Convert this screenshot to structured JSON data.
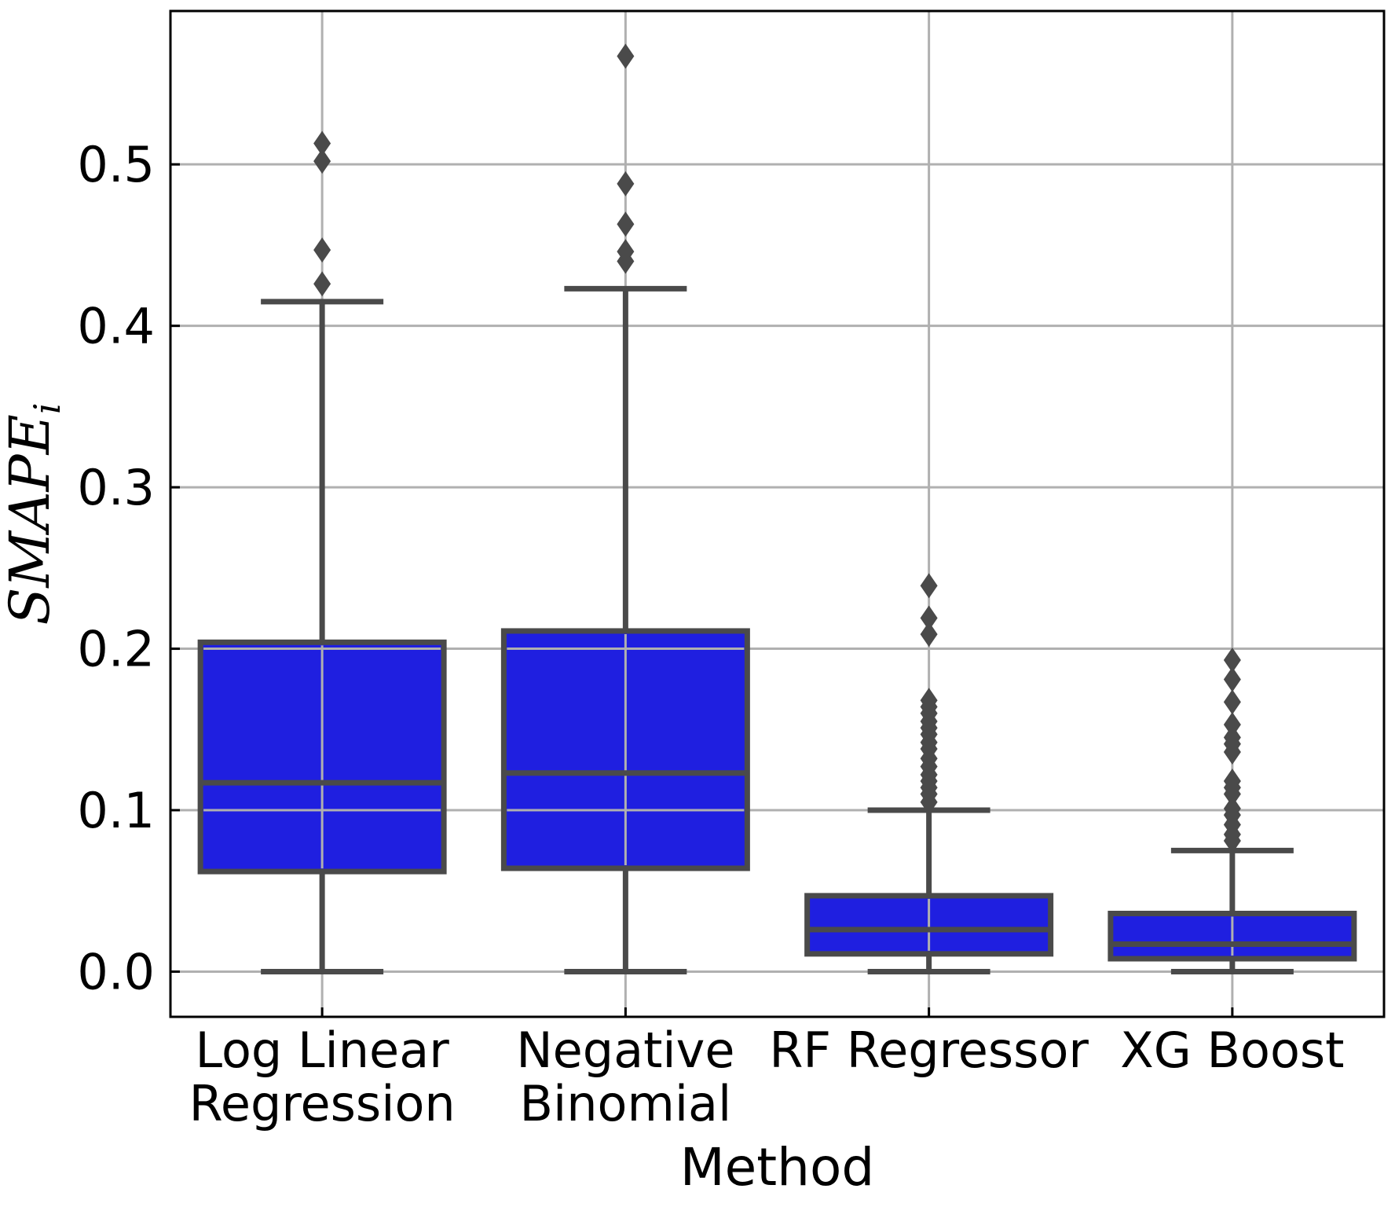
{
  "chart_data": {
    "type": "box",
    "title": "",
    "xlabel": "Method",
    "ylabel": "SMAPE",
    "ylabel_subscript": "i",
    "ylim": [
      -0.028,
      0.595
    ],
    "yticks": [
      "0.0",
      "0.1",
      "0.2",
      "0.3",
      "0.4",
      "0.5"
    ],
    "ytick_values": [
      0.0,
      0.1,
      0.2,
      0.3,
      0.4,
      0.5
    ],
    "grid": true,
    "colors": {
      "box_fill": "#1f1fe0",
      "box_edge": "#4a4a4a",
      "grid": "#b0b0b0",
      "axis": "#000000"
    },
    "categories": [
      {
        "label_lines": [
          "Log Linear",
          "Regression"
        ],
        "whisker_low": 0.0,
        "q1": 0.062,
        "median": 0.117,
        "q3": 0.204,
        "whisker_high": 0.415,
        "outliers": [
          0.426,
          0.447,
          0.502,
          0.513
        ]
      },
      {
        "label_lines": [
          "Negative",
          "Binomial"
        ],
        "whisker_low": 0.0,
        "q1": 0.064,
        "median": 0.123,
        "q3": 0.211,
        "whisker_high": 0.423,
        "outliers": [
          0.44,
          0.446,
          0.463,
          0.488,
          0.567
        ]
      },
      {
        "label_lines": [
          "RF Regressor"
        ],
        "whisker_low": 0.0,
        "q1": 0.011,
        "median": 0.026,
        "q3": 0.047,
        "whisker_high": 0.1,
        "outliers": [
          0.105,
          0.11,
          0.114,
          0.118,
          0.122,
          0.127,
          0.132,
          0.138,
          0.142,
          0.147,
          0.151,
          0.155,
          0.16,
          0.164,
          0.168,
          0.209,
          0.219,
          0.239
        ]
      },
      {
        "label_lines": [
          "XG Boost"
        ],
        "whisker_low": 0.0,
        "q1": 0.008,
        "median": 0.017,
        "q3": 0.036,
        "whisker_high": 0.075,
        "outliers": [
          0.081,
          0.085,
          0.091,
          0.097,
          0.101,
          0.11,
          0.114,
          0.118,
          0.136,
          0.141,
          0.145,
          0.153,
          0.167,
          0.181,
          0.193
        ]
      }
    ]
  }
}
